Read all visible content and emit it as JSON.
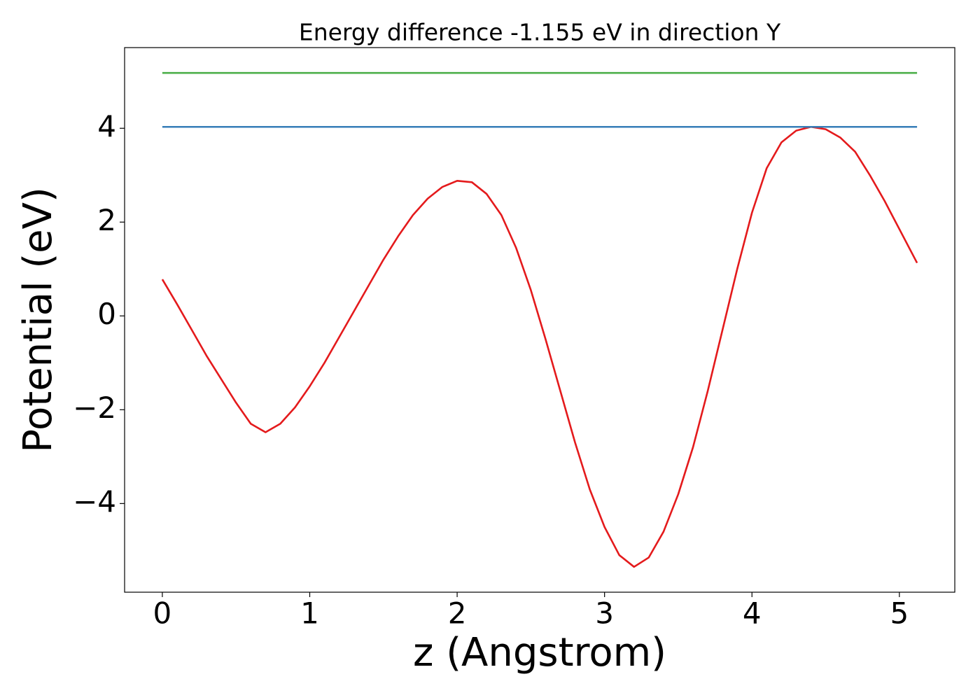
{
  "chart_data": {
    "type": "line",
    "title": "Energy difference -1.155 eV in direction Y",
    "x_label": "z (Angstrom)",
    "y_label": "Potential (eV)",
    "series": [
      {
        "color": "#e41a1c",
        "x": [
          0,
          0.1,
          0.2,
          0.3,
          0.4,
          0.5,
          0.6,
          0.7,
          0.8,
          0.9,
          1.0,
          1.1,
          1.2,
          1.3,
          1.4,
          1.5,
          1.6,
          1.7,
          1.8,
          1.9,
          2.0,
          2.1,
          2.2,
          2.3,
          2.4,
          2.5,
          2.6,
          2.7,
          2.8,
          2.9,
          3.0,
          3.1,
          3.2,
          3.3,
          3.4,
          3.5,
          3.6,
          3.7,
          3.8,
          3.9,
          4.0,
          4.1,
          4.2,
          4.3,
          4.4,
          4.5,
          4.6,
          4.7,
          4.8,
          4.9,
          5.0,
          5.12
        ],
        "values": [
          0.78,
          0.25,
          -0.3,
          -0.85,
          -1.35,
          -1.85,
          -2.3,
          -2.48,
          -2.3,
          -1.95,
          -1.5,
          -1.0,
          -0.45,
          0.1,
          0.65,
          1.2,
          1.7,
          2.15,
          2.5,
          2.75,
          2.88,
          2.85,
          2.6,
          2.15,
          1.45,
          0.55,
          -0.5,
          -1.6,
          -2.7,
          -3.7,
          -4.5,
          -5.1,
          -5.35,
          -5.15,
          -4.6,
          -3.8,
          -2.8,
          -1.6,
          -0.3,
          1.0,
          2.2,
          3.15,
          3.7,
          3.95,
          4.03,
          3.98,
          3.8,
          3.5,
          3.0,
          2.45,
          1.85,
          1.13
        ]
      },
      {
        "color": "#377eb8",
        "x": [
          0,
          5.12
        ],
        "values": [
          4.03,
          4.03
        ]
      },
      {
        "color": "#4daf4a",
        "x": [
          0,
          5.12
        ],
        "values": [
          5.18,
          5.18
        ]
      }
    ],
    "xlim": [
      -0.256,
      5.376
    ],
    "ylim": [
      -5.89,
      5.72
    ],
    "xticks": [
      0,
      1,
      2,
      3,
      4,
      5
    ],
    "yticks": [
      {
        "value": -4,
        "label": "−4"
      },
      {
        "value": -2,
        "label": "−2"
      },
      0,
      2,
      4
    ],
    "grid": false
  }
}
